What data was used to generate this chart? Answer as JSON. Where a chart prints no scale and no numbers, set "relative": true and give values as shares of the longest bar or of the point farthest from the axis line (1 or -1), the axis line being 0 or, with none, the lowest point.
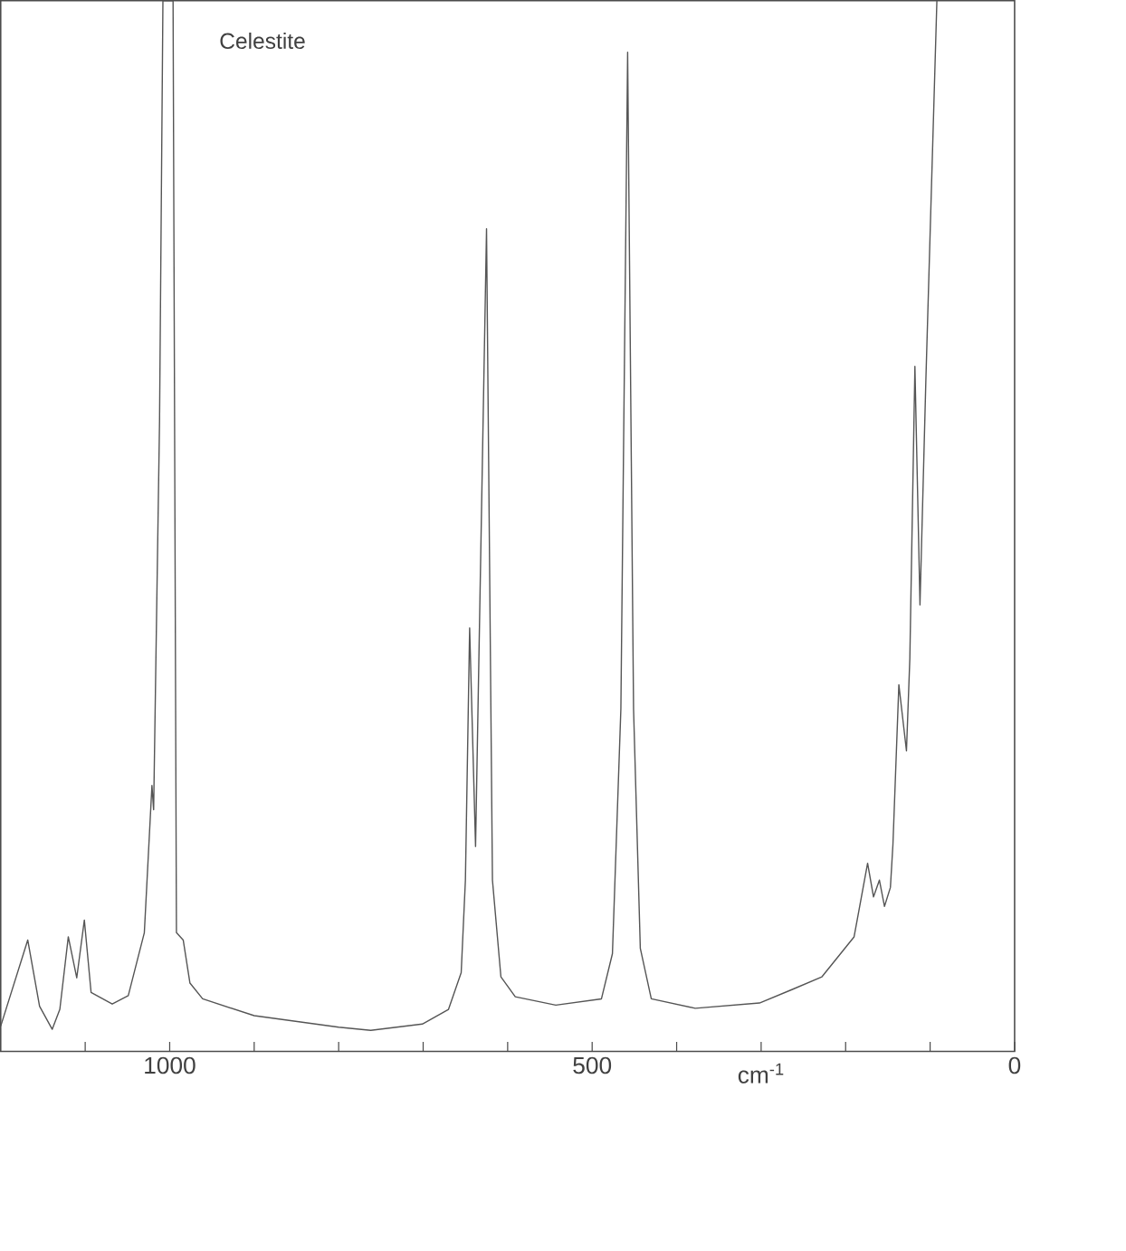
{
  "chart_data": {
    "type": "line",
    "title": "Celestite",
    "xlabel": "cm$^{-1}$",
    "relative": true,
    "color": "#555555",
    "xlim": [
      1200,
      0
    ],
    "xticks": [
      {
        "value": 1100,
        "label": null
      },
      1000,
      {
        "value": 900,
        "label": null
      },
      {
        "value": 800,
        "label": null
      },
      {
        "value": 700,
        "label": null
      },
      {
        "value": 600,
        "label": null
      },
      500,
      {
        "value": 400,
        "label": null
      },
      {
        "value": 300,
        "label": null
      },
      {
        "value": 200,
        "label": null
      },
      {
        "value": 100,
        "label": null
      },
      0
    ],
    "x": [
      1200,
      1168,
      1154,
      1139,
      1130,
      1120,
      1110,
      1101,
      1093,
      1068,
      1049,
      1030,
      1021,
      1019,
      1012,
      1008,
      996,
      992,
      984,
      976,
      961,
      900,
      800,
      762,
      701,
      670,
      655,
      650,
      645,
      638,
      625,
      618,
      608,
      591,
      543,
      489,
      476,
      466,
      458,
      451,
      443,
      430,
      378,
      302,
      263,
      228,
      190,
      174,
      167,
      160,
      154,
      147,
      144,
      137,
      128,
      124,
      118,
      112,
      105,
      92
    ],
    "values": [
      0.024,
      0.106,
      0.043,
      0.021,
      0.04,
      0.109,
      0.07,
      0.125,
      0.056,
      0.045,
      0.053,
      0.113,
      0.253,
      0.23,
      0.6,
      1.0,
      1.0,
      0.113,
      0.106,
      0.065,
      0.05,
      0.034,
      0.023,
      0.02,
      0.026,
      0.04,
      0.075,
      0.163,
      0.403,
      0.195,
      0.783,
      0.163,
      0.071,
      0.052,
      0.044,
      0.05,
      0.093,
      0.326,
      0.951,
      0.326,
      0.098,
      0.05,
      0.041,
      0.046,
      0.059,
      0.071,
      0.109,
      0.179,
      0.147,
      0.163,
      0.138,
      0.156,
      0.197,
      0.349,
      0.286,
      0.374,
      0.652,
      0.425,
      0.64,
      1.0
    ]
  }
}
